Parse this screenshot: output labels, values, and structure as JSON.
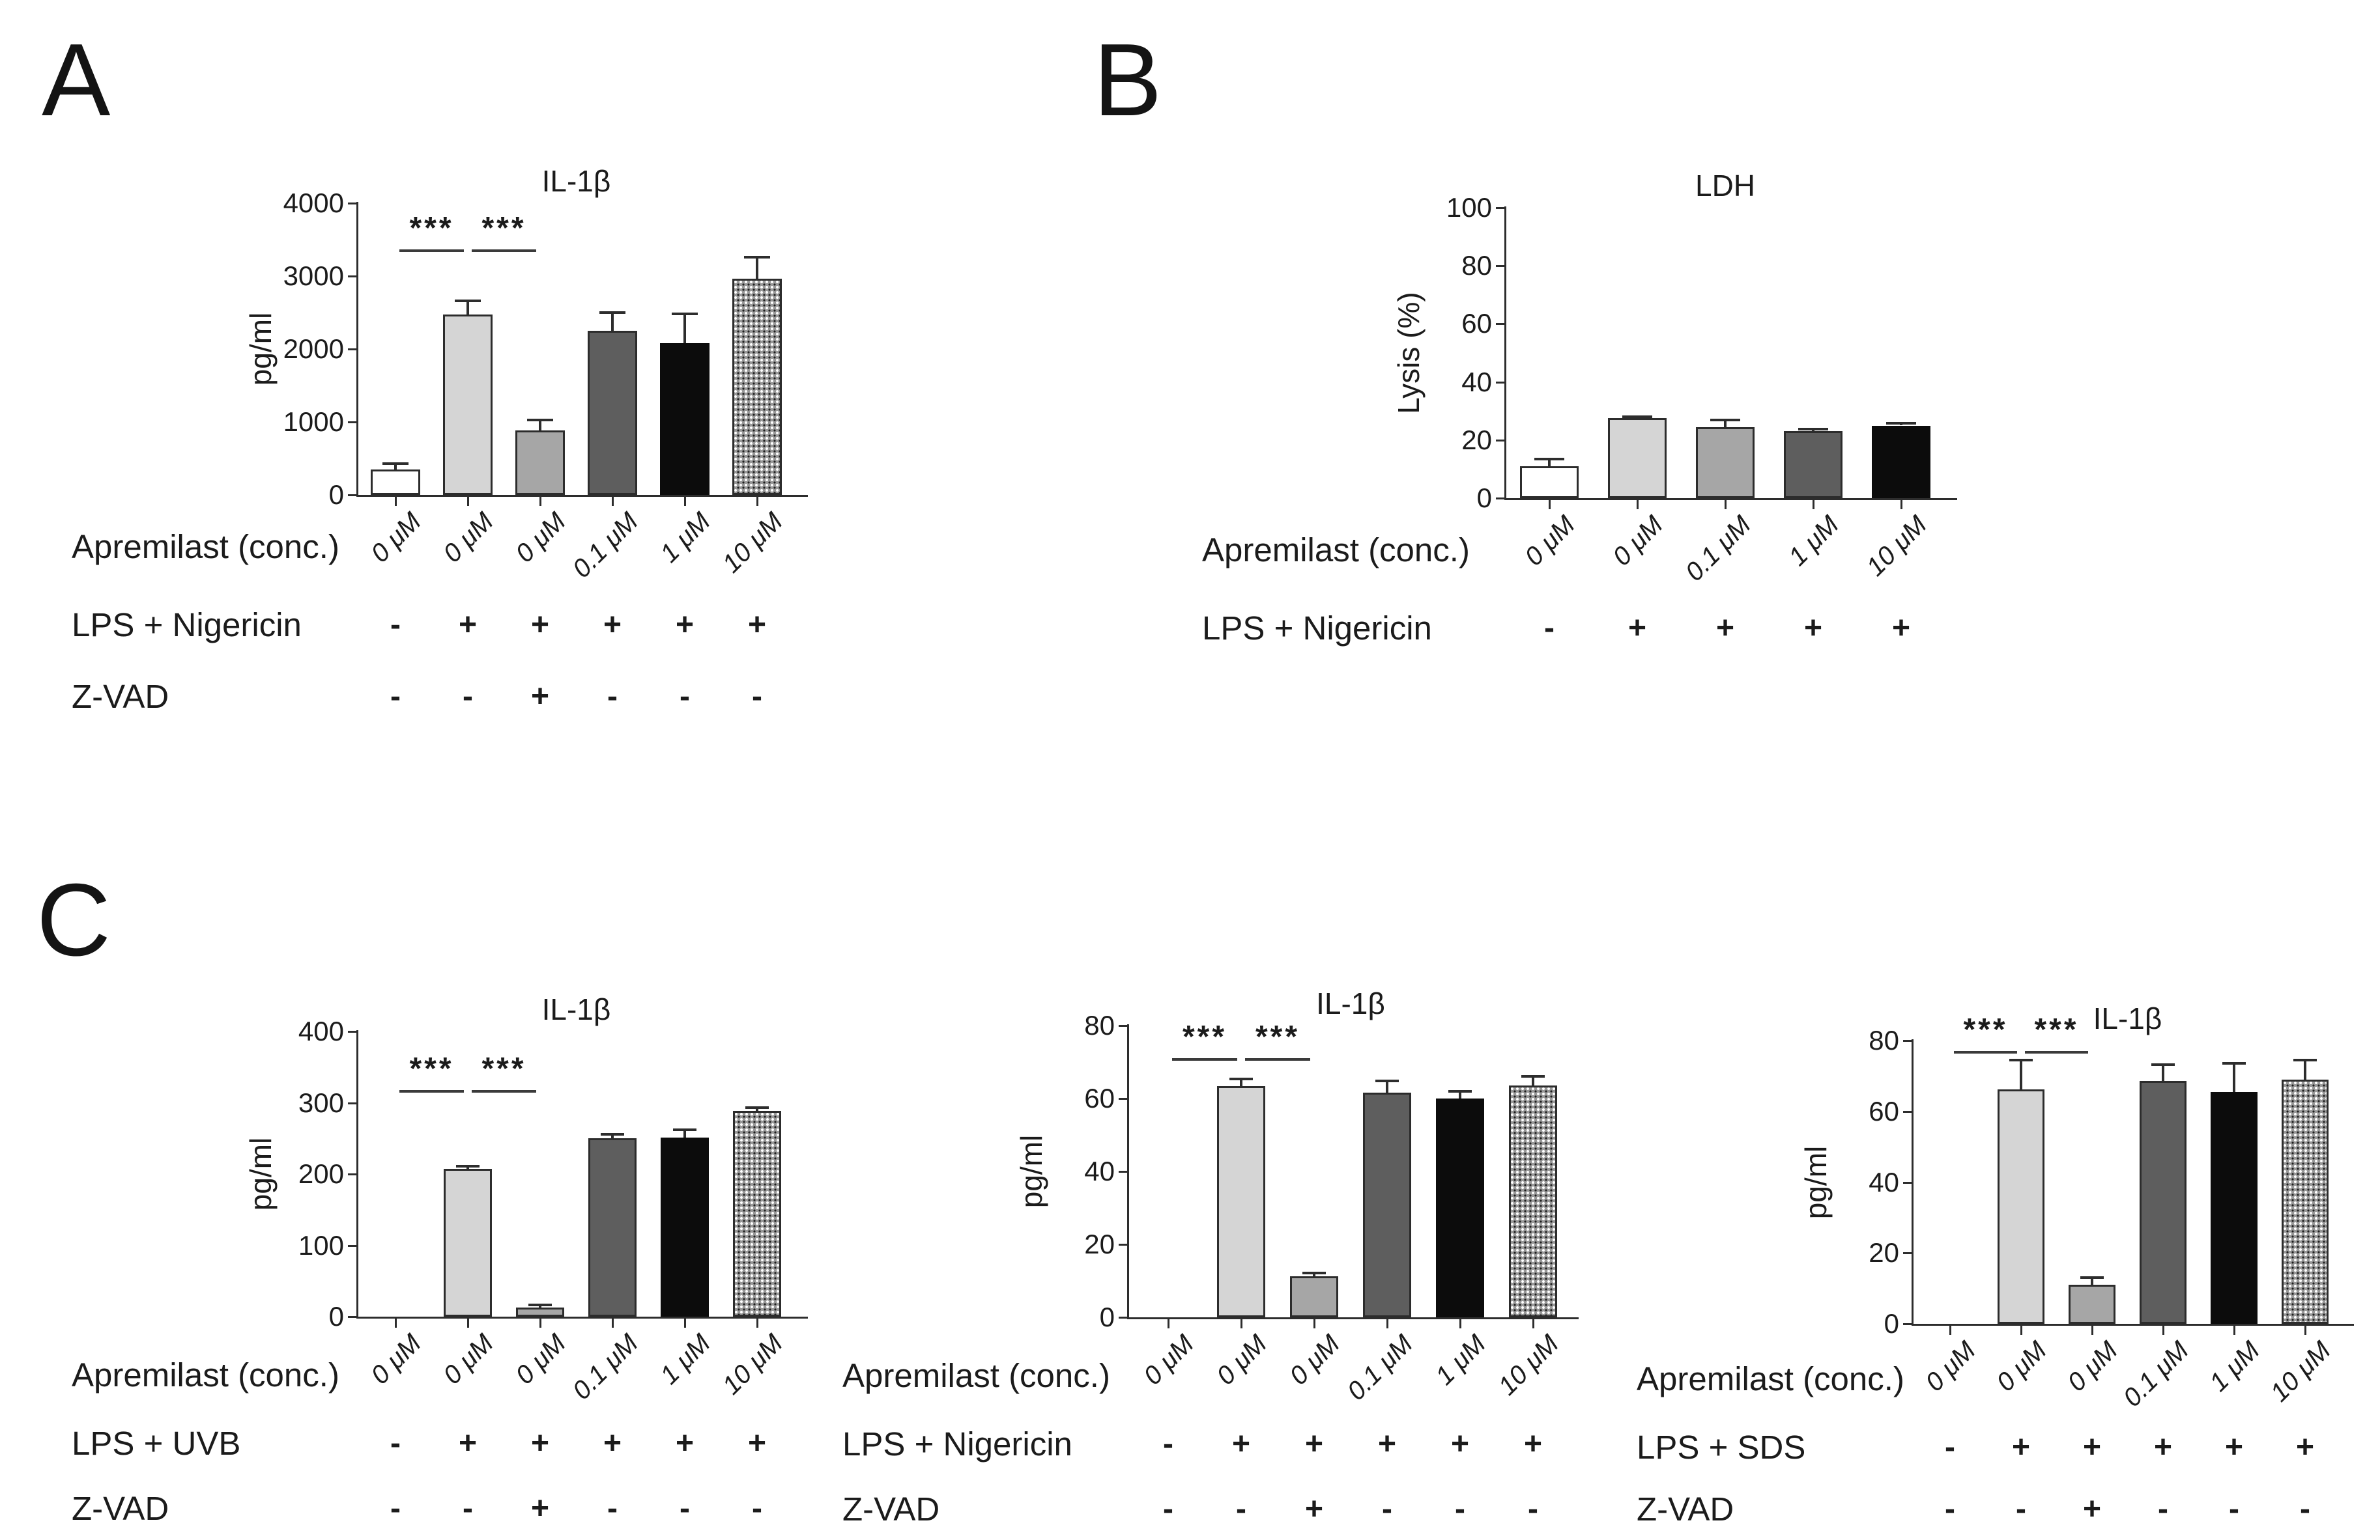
{
  "panel_labels": [
    "A",
    "B",
    "C"
  ],
  "bar_styles": {
    "white": {
      "fill": "#ffffff",
      "border": "#2c2c2c"
    },
    "lightgray": {
      "fill": "#d5d5d5",
      "border": "#2c2c2c"
    },
    "midgray": {
      "fill": "#a6a6a6",
      "border": "#2c2c2c"
    },
    "darkgray": {
      "fill": "#5e5e5e",
      "border": "#2c2c2c"
    },
    "black": {
      "fill": "#0c0c0c",
      "border": "#0c0c0c"
    },
    "pattern": {
      "fill": "#989898",
      "border": "#2c2c2c",
      "pattern": "dot-grid"
    }
  },
  "chart_data": [
    {
      "id": "A",
      "type": "bar",
      "title": "IL-1β",
      "ylabel": "pg/ml",
      "ylim": [
        0,
        4000
      ],
      "yticks": [
        0,
        1000,
        2000,
        3000,
        4000
      ],
      "categories_label": "Apremilast (conc.)",
      "categories": [
        "0 μM",
        "0 μM",
        "0 μM",
        "0.1 μM",
        "1 μM",
        "10 μM"
      ],
      "values": [
        350,
        2470,
        885,
        2250,
        2080,
        2960
      ],
      "errors": [
        80,
        190,
        140,
        250,
        400,
        300
      ],
      "styles": [
        "white",
        "lightgray",
        "midgray",
        "darkgray",
        "black",
        "pattern"
      ],
      "significance": [
        {
          "between": [
            0,
            1
          ],
          "label": "***",
          "y": 3370
        },
        {
          "between": [
            1,
            2
          ],
          "label": "***",
          "y": 3370
        }
      ],
      "condition_rows": [
        {
          "label": "LPS + Nigericin",
          "values": [
            "-",
            "+",
            "+",
            "+",
            "+",
            "+"
          ]
        },
        {
          "label": "Z-VAD",
          "values": [
            "-",
            "-",
            "+",
            "-",
            "-",
            "-"
          ]
        }
      ],
      "grid": false,
      "legend": null
    },
    {
      "id": "B",
      "type": "bar",
      "title": "LDH",
      "ylabel": "Lysis (%)",
      "ylim": [
        0,
        100
      ],
      "yticks": [
        0,
        20,
        40,
        60,
        80,
        100
      ],
      "categories_label": "Apremilast (conc.)",
      "categories": [
        "0 μM",
        "0 μM",
        "0.1 μM",
        "1 μM",
        "10 μM"
      ],
      "values": [
        11,
        27.5,
        24.5,
        23,
        25
      ],
      "errors": [
        2.5,
        0.6,
        2.3,
        0.8,
        0.8
      ],
      "styles": [
        "white",
        "lightgray",
        "midgray",
        "darkgray",
        "black"
      ],
      "significance": [],
      "condition_rows": [
        {
          "label": "LPS + Nigericin",
          "values": [
            "-",
            "+",
            "+",
            "+",
            "+"
          ]
        }
      ],
      "grid": false,
      "legend": null
    },
    {
      "id": "C1",
      "type": "bar",
      "title": "IL-1β",
      "ylabel": "pg/ml",
      "ylim": [
        0,
        400
      ],
      "yticks": [
        0,
        100,
        200,
        300,
        400
      ],
      "categories_label": "Apremilast (conc.)",
      "categories": [
        "0 μM",
        "0 μM",
        "0 μM",
        "0.1 μM",
        "1 μM",
        "10 μM"
      ],
      "values": [
        0,
        207,
        13,
        250,
        251,
        289
      ],
      "errors": [
        0,
        4,
        3,
        6,
        11,
        4
      ],
      "styles": [
        "white",
        "lightgray",
        "midgray",
        "darkgray",
        "black",
        "pattern"
      ],
      "significance": [
        {
          "between": [
            0,
            1
          ],
          "label": "***",
          "y": 318
        },
        {
          "between": [
            1,
            2
          ],
          "label": "***",
          "y": 318
        }
      ],
      "condition_rows": [
        {
          "label": "LPS + UVB",
          "values": [
            "-",
            "+",
            "+",
            "+",
            "+",
            "+"
          ]
        },
        {
          "label": "Z-VAD",
          "values": [
            "-",
            "-",
            "+",
            "-",
            "-",
            "-"
          ]
        }
      ],
      "grid": false,
      "legend": null
    },
    {
      "id": "C2",
      "type": "bar",
      "title": "IL-1β",
      "ylabel": "pg/ml",
      "ylim": [
        0,
        80
      ],
      "yticks": [
        0,
        20,
        40,
        60,
        80
      ],
      "categories_label": "Apremilast (conc.)",
      "categories": [
        "0 μM",
        "0 μM",
        "0 μM",
        "0.1 μM",
        "1 μM",
        "10 μM"
      ],
      "values": [
        0,
        63.4,
        11.2,
        61.6,
        60,
        63.5
      ],
      "errors": [
        0,
        2,
        1,
        3.2,
        2,
        2.5
      ],
      "styles": [
        "white",
        "lightgray",
        "midgray",
        "darkgray",
        "black",
        "pattern"
      ],
      "significance": [
        {
          "between": [
            0,
            1
          ],
          "label": "***",
          "y": 71
        },
        {
          "between": [
            1,
            2
          ],
          "label": "***",
          "y": 71
        }
      ],
      "condition_rows": [
        {
          "label": "LPS + Nigericin",
          "values": [
            "-",
            "+",
            "+",
            "+",
            "+",
            "+"
          ]
        },
        {
          "label": "Z-VAD",
          "values": [
            "-",
            "-",
            "+",
            "-",
            "-",
            "-"
          ]
        }
      ],
      "grid": false,
      "legend": null
    },
    {
      "id": "C3",
      "type": "bar",
      "title": "IL-1β",
      "ylabel": "pg/ml",
      "ylim": [
        0,
        80
      ],
      "yticks": [
        0,
        20,
        40,
        60,
        80
      ],
      "categories_label": "Apremilast (conc.)",
      "categories": [
        "0 μM",
        "0 μM",
        "0 μM",
        "0.1 μM",
        "1 μM",
        "10 μM"
      ],
      "values": [
        0,
        66.2,
        11,
        68.6,
        65.5,
        69
      ],
      "errors": [
        0,
        8.3,
        2,
        4.6,
        8,
        5.5
      ],
      "styles": [
        "white",
        "lightgray",
        "midgray",
        "darkgray",
        "black",
        "pattern"
      ],
      "significance": [
        {
          "between": [
            0,
            1
          ],
          "label": "***",
          "y": 77
        },
        {
          "between": [
            1,
            2
          ],
          "label": "***",
          "y": 77
        }
      ],
      "condition_rows": [
        {
          "label": "LPS + SDS",
          "values": [
            "-",
            "+",
            "+",
            "+",
            "+",
            "+"
          ]
        },
        {
          "label": "Z-VAD",
          "values": [
            "-",
            "-",
            "+",
            "-",
            "-",
            "-"
          ]
        }
      ],
      "grid": false,
      "legend": null
    }
  ]
}
